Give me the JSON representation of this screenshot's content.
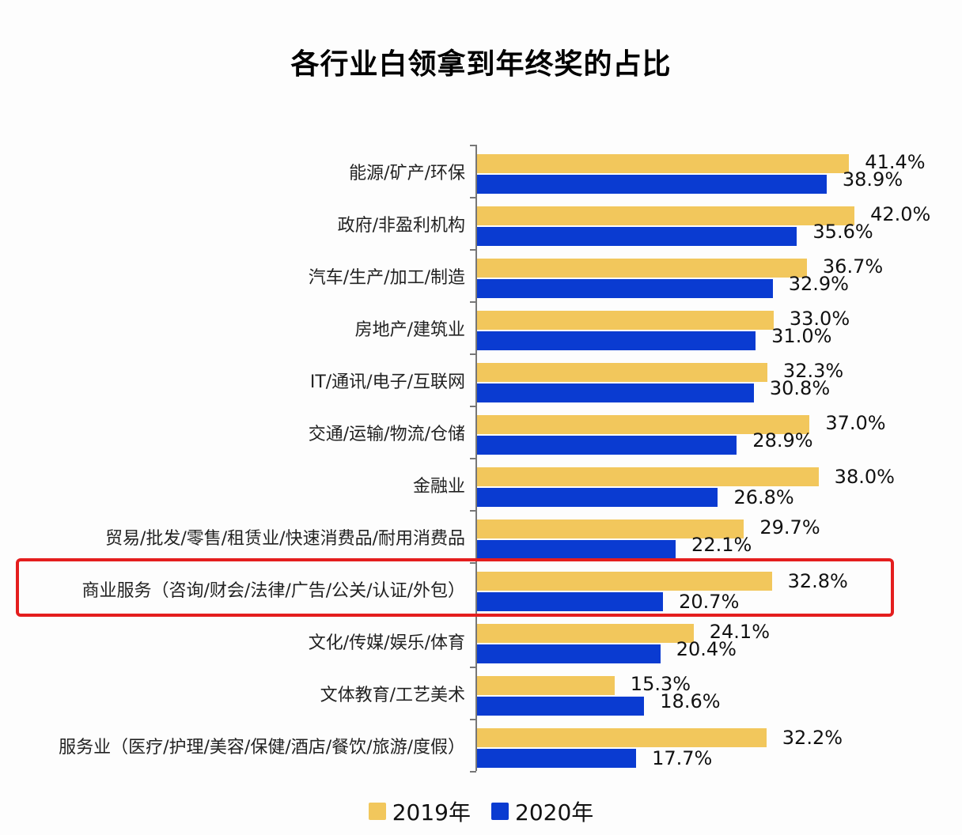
{
  "chart_data": {
    "type": "bar",
    "orientation": "horizontal",
    "title": "各行业白领拿到年终奖的占比",
    "xlabel": "",
    "ylabel": "",
    "categories": [
      "能源/矿产/环保",
      "政府/非盈利机构",
      "汽车/生产/加工/制造",
      "房地产/建筑业",
      "IT/通讯/电子/互联网",
      "交通/运输/物流/仓储",
      "金融业",
      "贸易/批发/零售/租赁业/快速消费品/耐用消费品",
      "商业服务（咨询/财会/法律/广告/公关/认证/外包）",
      "文化/传媒/娱乐/体育",
      "文体教育/工艺美术",
      "服务业（医疗/护理/美容/保健/酒店/餐饮/旅游/度假）"
    ],
    "series": [
      {
        "name": "2019年",
        "color": "#f2c75c",
        "values": [
          41.4,
          42.0,
          36.7,
          33.0,
          32.3,
          37.0,
          38.0,
          29.7,
          32.8,
          24.1,
          15.3,
          32.2
        ]
      },
      {
        "name": "2020年",
        "color": "#0a3bd1",
        "values": [
          38.9,
          35.6,
          32.9,
          31.0,
          30.8,
          28.9,
          26.8,
          22.1,
          20.7,
          20.4,
          18.6,
          17.7
        ]
      }
    ],
    "value_labels_2019": [
      "41.4%",
      "42.0%",
      "36.7%",
      "33.0%",
      "32.3%",
      "37.0%",
      "38.0%",
      "29.7%",
      "32.8%",
      "24.1%",
      "15.3%",
      "32.2%"
    ],
    "value_labels_2020": [
      "38.9%",
      "35.6%",
      "32.9%",
      "31.0%",
      "30.8%",
      "28.9%",
      "26.8%",
      "22.1%",
      "20.7%",
      "20.4%",
      "18.6%",
      "17.7%"
    ],
    "highlighted_category_index": 8,
    "highlight_color": "#e41e1e",
    "legend": {
      "position": "bottom",
      "entries": [
        "2019年",
        "2020年"
      ]
    },
    "grid": false,
    "unit": "%"
  }
}
